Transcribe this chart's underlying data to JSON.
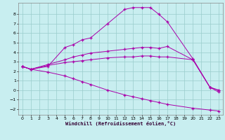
{
  "xlabel": "Windchill (Refroidissement éolien,°C)",
  "bg_color": "#c8eef0",
  "line_color": "#aa00aa",
  "grid_color": "#99cccc",
  "xlim": [
    -0.5,
    23.5
  ],
  "ylim": [
    -2.6,
    9.2
  ],
  "xticks": [
    0,
    1,
    2,
    3,
    4,
    5,
    6,
    7,
    8,
    9,
    10,
    11,
    12,
    13,
    14,
    15,
    16,
    17,
    18,
    19,
    20,
    21,
    22,
    23
  ],
  "yticks": [
    -2,
    -1,
    0,
    1,
    2,
    3,
    4,
    5,
    6,
    7,
    8
  ],
  "lines": [
    {
      "x": [
        0,
        1,
        3,
        5,
        6,
        7,
        8,
        10,
        12,
        13,
        14,
        15,
        16,
        17,
        20,
        22,
        23
      ],
      "y": [
        2.5,
        2.2,
        2.5,
        4.5,
        4.8,
        5.3,
        5.5,
        7.0,
        8.5,
        8.7,
        8.7,
        8.7,
        8.0,
        7.2,
        3.3,
        0.3,
        -0.2
      ]
    },
    {
      "x": [
        0,
        1,
        3,
        5,
        6,
        7,
        8,
        10,
        12,
        13,
        14,
        15,
        16,
        17,
        20,
        22,
        23
      ],
      "y": [
        2.5,
        2.2,
        2.7,
        3.2,
        3.5,
        3.7,
        3.9,
        4.1,
        4.3,
        4.4,
        4.5,
        4.5,
        4.4,
        4.6,
        3.2,
        0.3,
        0.0
      ]
    },
    {
      "x": [
        0,
        1,
        3,
        5,
        6,
        7,
        8,
        10,
        12,
        13,
        14,
        15,
        16,
        17,
        20,
        22,
        23
      ],
      "y": [
        2.5,
        2.2,
        2.6,
        2.9,
        3.0,
        3.1,
        3.2,
        3.4,
        3.5,
        3.5,
        3.6,
        3.6,
        3.5,
        3.5,
        3.2,
        0.3,
        0.0
      ]
    },
    {
      "x": [
        0,
        1,
        3,
        5,
        6,
        7,
        8,
        10,
        12,
        13,
        14,
        15,
        16,
        17,
        20,
        22,
        23
      ],
      "y": [
        2.5,
        2.2,
        1.9,
        1.5,
        1.2,
        0.9,
        0.6,
        0.0,
        -0.5,
        -0.7,
        -0.9,
        -1.1,
        -1.3,
        -1.5,
        -1.9,
        -2.1,
        -2.2
      ]
    }
  ]
}
